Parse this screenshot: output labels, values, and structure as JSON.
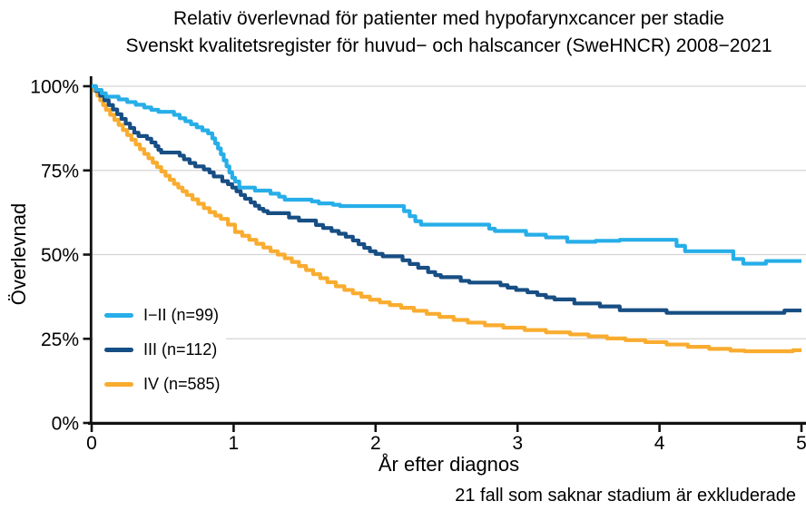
{
  "chart_data": {
    "type": "line",
    "subtype": "step-survival-curves",
    "title": "Relativ överlevnad för patienter med hypofarynxcancer per stadie",
    "subtitle": "Svenskt kvalitetsregister för huvud− och halscancer (SweHNCR) 2008−2021",
    "footnote": "21 fall som saknar stadium är exkluderade",
    "xlabel": "År efter diagnos",
    "ylabel": "Överlevnad",
    "xlim": [
      0,
      5
    ],
    "ylim": [
      0,
      100
    ],
    "xticks": [
      "0",
      "1",
      "2",
      "3",
      "4",
      "5"
    ],
    "xtick_values": [
      0,
      1,
      2,
      3,
      4,
      5
    ],
    "ytick_labels": [
      "0%",
      "25%",
      "50%",
      "75%",
      "100%"
    ],
    "ytick_values": [
      0,
      25,
      50,
      75,
      100
    ],
    "grid": "horizontal-only",
    "grid_color": "#d5d5d5",
    "axis_color": "#111111",
    "legend_position": "inside-left",
    "series": [
      {
        "name": "I−II (n=99)",
        "color": "#27AEE8",
        "points": [
          [
            0,
            100
          ],
          [
            0.03,
            98.9
          ],
          [
            0.07,
            97.9
          ],
          [
            0.1,
            96.9
          ],
          [
            0.19,
            96.1
          ],
          [
            0.25,
            95.3
          ],
          [
            0.31,
            94.5
          ],
          [
            0.37,
            93.7
          ],
          [
            0.42,
            93.0
          ],
          [
            0.47,
            92.4
          ],
          [
            0.58,
            91.5
          ],
          [
            0.62,
            90.5
          ],
          [
            0.66,
            89.6
          ],
          [
            0.7,
            88.7
          ],
          [
            0.74,
            87.8
          ],
          [
            0.78,
            86.9
          ],
          [
            0.82,
            86.0
          ],
          [
            0.85,
            84.5
          ],
          [
            0.87,
            83.0
          ],
          [
            0.89,
            81.5
          ],
          [
            0.91,
            79.8
          ],
          [
            0.93,
            78.0
          ],
          [
            0.95,
            76.2
          ],
          [
            0.97,
            74.4
          ],
          [
            0.99,
            72.8
          ],
          [
            1.01,
            71.7
          ],
          [
            1.04,
            69.9
          ],
          [
            1.15,
            69.0
          ],
          [
            1.26,
            68.1
          ],
          [
            1.32,
            67.2
          ],
          [
            1.36,
            66.3
          ],
          [
            1.55,
            65.8
          ],
          [
            1.6,
            65.2
          ],
          [
            1.7,
            64.8
          ],
          [
            1.75,
            64.4
          ],
          [
            2.2,
            62.9
          ],
          [
            2.24,
            61.4
          ],
          [
            2.28,
            59.9
          ],
          [
            2.32,
            58.9
          ],
          [
            2.8,
            57.7
          ],
          [
            2.84,
            57.0
          ],
          [
            3.06,
            55.9
          ],
          [
            3.2,
            55.1
          ],
          [
            3.35,
            53.8
          ],
          [
            3.55,
            54.1
          ],
          [
            3.72,
            54.4
          ],
          [
            4.12,
            52.6
          ],
          [
            4.18,
            51.0
          ],
          [
            4.52,
            48.7
          ],
          [
            4.59,
            47.3
          ],
          [
            4.75,
            48.1
          ],
          [
            5,
            48.1
          ]
        ]
      },
      {
        "name": "III (n=112)",
        "color": "#174E84",
        "points": [
          [
            0,
            100
          ],
          [
            0.03,
            98.6
          ],
          [
            0.06,
            97.2
          ],
          [
            0.09,
            95.8
          ],
          [
            0.12,
            94.4
          ],
          [
            0.15,
            93.1
          ],
          [
            0.18,
            91.7
          ],
          [
            0.21,
            90.3
          ],
          [
            0.24,
            88.9
          ],
          [
            0.27,
            87.6
          ],
          [
            0.3,
            86.2
          ],
          [
            0.33,
            85.2
          ],
          [
            0.39,
            84.4
          ],
          [
            0.42,
            83.3
          ],
          [
            0.45,
            82.2
          ],
          [
            0.47,
            81.1
          ],
          [
            0.49,
            80.3
          ],
          [
            0.62,
            79.4
          ],
          [
            0.65,
            78.3
          ],
          [
            0.69,
            77.2
          ],
          [
            0.73,
            76.2
          ],
          [
            0.79,
            75.3
          ],
          [
            0.83,
            74.4
          ],
          [
            0.86,
            73.2
          ],
          [
            0.92,
            71.8
          ],
          [
            0.96,
            70.9
          ],
          [
            0.99,
            69.9
          ],
          [
            1.02,
            68.8
          ],
          [
            1.05,
            67.7
          ],
          [
            1.08,
            66.6
          ],
          [
            1.12,
            65.5
          ],
          [
            1.15,
            64.5
          ],
          [
            1.18,
            63.6
          ],
          [
            1.21,
            62.9
          ],
          [
            1.24,
            62.3
          ],
          [
            1.39,
            61.0
          ],
          [
            1.46,
            60.1
          ],
          [
            1.58,
            58.8
          ],
          [
            1.63,
            57.9
          ],
          [
            1.69,
            57.0
          ],
          [
            1.74,
            56.2
          ],
          [
            1.79,
            55.3
          ],
          [
            1.84,
            54.2
          ],
          [
            1.88,
            53.1
          ],
          [
            1.92,
            52.0
          ],
          [
            1.96,
            51.0
          ],
          [
            2.0,
            50.2
          ],
          [
            2.05,
            49.5
          ],
          [
            2.19,
            48.3
          ],
          [
            2.24,
            47.2
          ],
          [
            2.3,
            46.1
          ],
          [
            2.37,
            44.8
          ],
          [
            2.42,
            43.9
          ],
          [
            2.46,
            43.3
          ],
          [
            2.6,
            42.2
          ],
          [
            2.66,
            41.7
          ],
          [
            2.88,
            40.9
          ],
          [
            2.93,
            40.2
          ],
          [
            2.99,
            39.5
          ],
          [
            3.07,
            38.8
          ],
          [
            3.14,
            38.0
          ],
          [
            3.2,
            37.3
          ],
          [
            3.26,
            36.7
          ],
          [
            3.4,
            35.5
          ],
          [
            3.58,
            34.6
          ],
          [
            3.72,
            33.5
          ],
          [
            4.05,
            32.7
          ],
          [
            4.88,
            33.4
          ],
          [
            5,
            33.4
          ]
        ]
      },
      {
        "name": "IV (n=585)",
        "color": "#F9AC2F",
        "points": [
          [
            0,
            100
          ],
          [
            0.02,
            98.6
          ],
          [
            0.04,
            97.2
          ],
          [
            0.06,
            95.8
          ],
          [
            0.08,
            94.4
          ],
          [
            0.1,
            93.0
          ],
          [
            0.13,
            91.5
          ],
          [
            0.16,
            90.0
          ],
          [
            0.19,
            88.5
          ],
          [
            0.22,
            87.0
          ],
          [
            0.25,
            85.5
          ],
          [
            0.28,
            84.1
          ],
          [
            0.31,
            82.7
          ],
          [
            0.34,
            81.3
          ],
          [
            0.37,
            79.9
          ],
          [
            0.4,
            78.6
          ],
          [
            0.43,
            77.3
          ],
          [
            0.46,
            76.0
          ],
          [
            0.49,
            74.7
          ],
          [
            0.52,
            73.4
          ],
          [
            0.55,
            72.2
          ],
          [
            0.58,
            71.0
          ],
          [
            0.61,
            69.9
          ],
          [
            0.64,
            68.8
          ],
          [
            0.67,
            67.7
          ],
          [
            0.71,
            66.4
          ],
          [
            0.75,
            65.1
          ],
          [
            0.79,
            63.8
          ],
          [
            0.83,
            62.6
          ],
          [
            0.87,
            61.6
          ],
          [
            0.91,
            60.6
          ],
          [
            0.96,
            58.9
          ],
          [
            1.01,
            56.7
          ],
          [
            1.06,
            55.6
          ],
          [
            1.11,
            54.4
          ],
          [
            1.16,
            53.2
          ],
          [
            1.21,
            52.1
          ],
          [
            1.26,
            51.0
          ],
          [
            1.31,
            50.0
          ],
          [
            1.36,
            48.9
          ],
          [
            1.41,
            47.8
          ],
          [
            1.46,
            46.6
          ],
          [
            1.51,
            45.4
          ],
          [
            1.56,
            44.2
          ],
          [
            1.61,
            43.0
          ],
          [
            1.66,
            41.8
          ],
          [
            1.72,
            40.6
          ],
          [
            1.78,
            39.5
          ],
          [
            1.84,
            38.5
          ],
          [
            1.9,
            37.5
          ],
          [
            1.96,
            36.6
          ],
          [
            2.03,
            35.8
          ],
          [
            2.1,
            35.0
          ],
          [
            2.18,
            34.2
          ],
          [
            2.27,
            33.3
          ],
          [
            2.36,
            32.4
          ],
          [
            2.45,
            31.5
          ],
          [
            2.55,
            30.6
          ],
          [
            2.65,
            29.8
          ],
          [
            2.77,
            29.0
          ],
          [
            2.9,
            28.3
          ],
          [
            3.05,
            27.6
          ],
          [
            3.2,
            26.9
          ],
          [
            3.37,
            26.3
          ],
          [
            3.5,
            25.7
          ],
          [
            3.63,
            25.1
          ],
          [
            3.76,
            24.6
          ],
          [
            3.9,
            24.0
          ],
          [
            4.05,
            23.3
          ],
          [
            4.2,
            22.6
          ],
          [
            4.35,
            22.0
          ],
          [
            4.5,
            21.5
          ],
          [
            4.6,
            21.3
          ],
          [
            4.9,
            21.3
          ],
          [
            4.94,
            21.6
          ],
          [
            5,
            21.6
          ]
        ]
      }
    ]
  }
}
